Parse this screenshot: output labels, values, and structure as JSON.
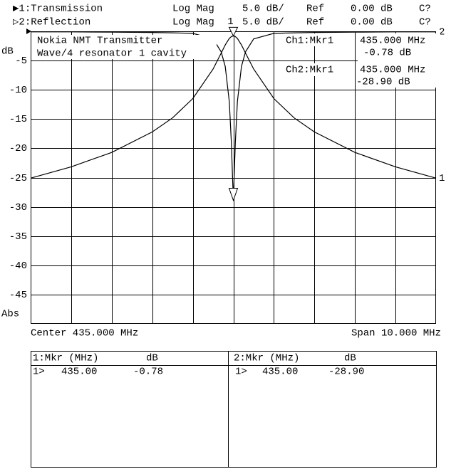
{
  "chart_data": {
    "type": "line",
    "header": [
      [
        "▶1:Transmission",
        "Log Mag",
        "5.0 dB/",
        "Ref",
        "0.00 dB",
        "C?"
      ],
      [
        "▷2:Reflection",
        "Log Mag",
        "5.0 dB/",
        "Ref",
        "0.00 dB",
        "C?"
      ]
    ],
    "annotations": [
      "Nokia NMT Transmitter",
      "Wave/4 resonator 1 cavity"
    ],
    "marker_readouts": [
      [
        "Ch1:Mkr1",
        "435.000 MHz",
        "-0.78 dB"
      ],
      [
        "Ch2:Mkr1",
        "435.000 MHz",
        "-28.90 dB"
      ]
    ],
    "y_label": "dB",
    "y_format": "Abs",
    "center_label": "Center 435.000 MHz",
    "span_label": "Span 10.000 MHz",
    "marker_label": "1",
    "x": [
      430,
      431,
      432,
      433,
      433.5,
      434,
      434.5,
      434.7,
      434.8,
      434.9,
      434.95,
      435,
      435.05,
      435.1,
      435.2,
      435.3,
      435.5,
      436,
      436.5,
      437,
      438,
      439,
      440
    ],
    "series": [
      {
        "name": "1",
        "color": "#000000",
        "values": [
          -25.1,
          -23.16,
          -20.7,
          -17.2,
          -14.8,
          -11.5,
          -6.45,
          -3.72,
          -2.33,
          -1.22,
          -0.9,
          -0.78,
          -0.9,
          -1.22,
          -2.33,
          -3.72,
          -6.45,
          -11.5,
          -14.8,
          -17.2,
          -20.7,
          -23.16,
          -25.1
        ]
      },
      {
        "name": "2",
        "color": "#000000",
        "values": [
          -0.1,
          -0.1,
          -0.15,
          -0.2,
          -0.25,
          -0.35,
          -1.3,
          -3.5,
          -6,
          -12,
          -19,
          -28.9,
          -19,
          -12,
          -6,
          -3.5,
          -1.3,
          -0.35,
          -0.25,
          -0.2,
          -0.15,
          -0.1,
          -0.1
        ]
      }
    ],
    "xlim": [
      430,
      440
    ],
    "xticks": [
      431,
      432,
      433,
      434,
      435,
      436,
      437,
      438,
      439
    ],
    "ylim": [
      -50,
      0
    ],
    "yticks": [
      -5,
      -10,
      -15,
      -20,
      -25,
      -30,
      -35,
      -40,
      -45
    ],
    "grid": true
  },
  "marker_table": [
    {
      "header": [
        "1:Mkr (MHz)",
        "dB"
      ],
      "row": [
        "1>",
        "435.00",
        "-0.78"
      ]
    },
    {
      "header": [
        "2:Mkr (MHz)",
        "dB"
      ],
      "row": [
        "1>",
        "435.00",
        "-28.90"
      ]
    }
  ]
}
